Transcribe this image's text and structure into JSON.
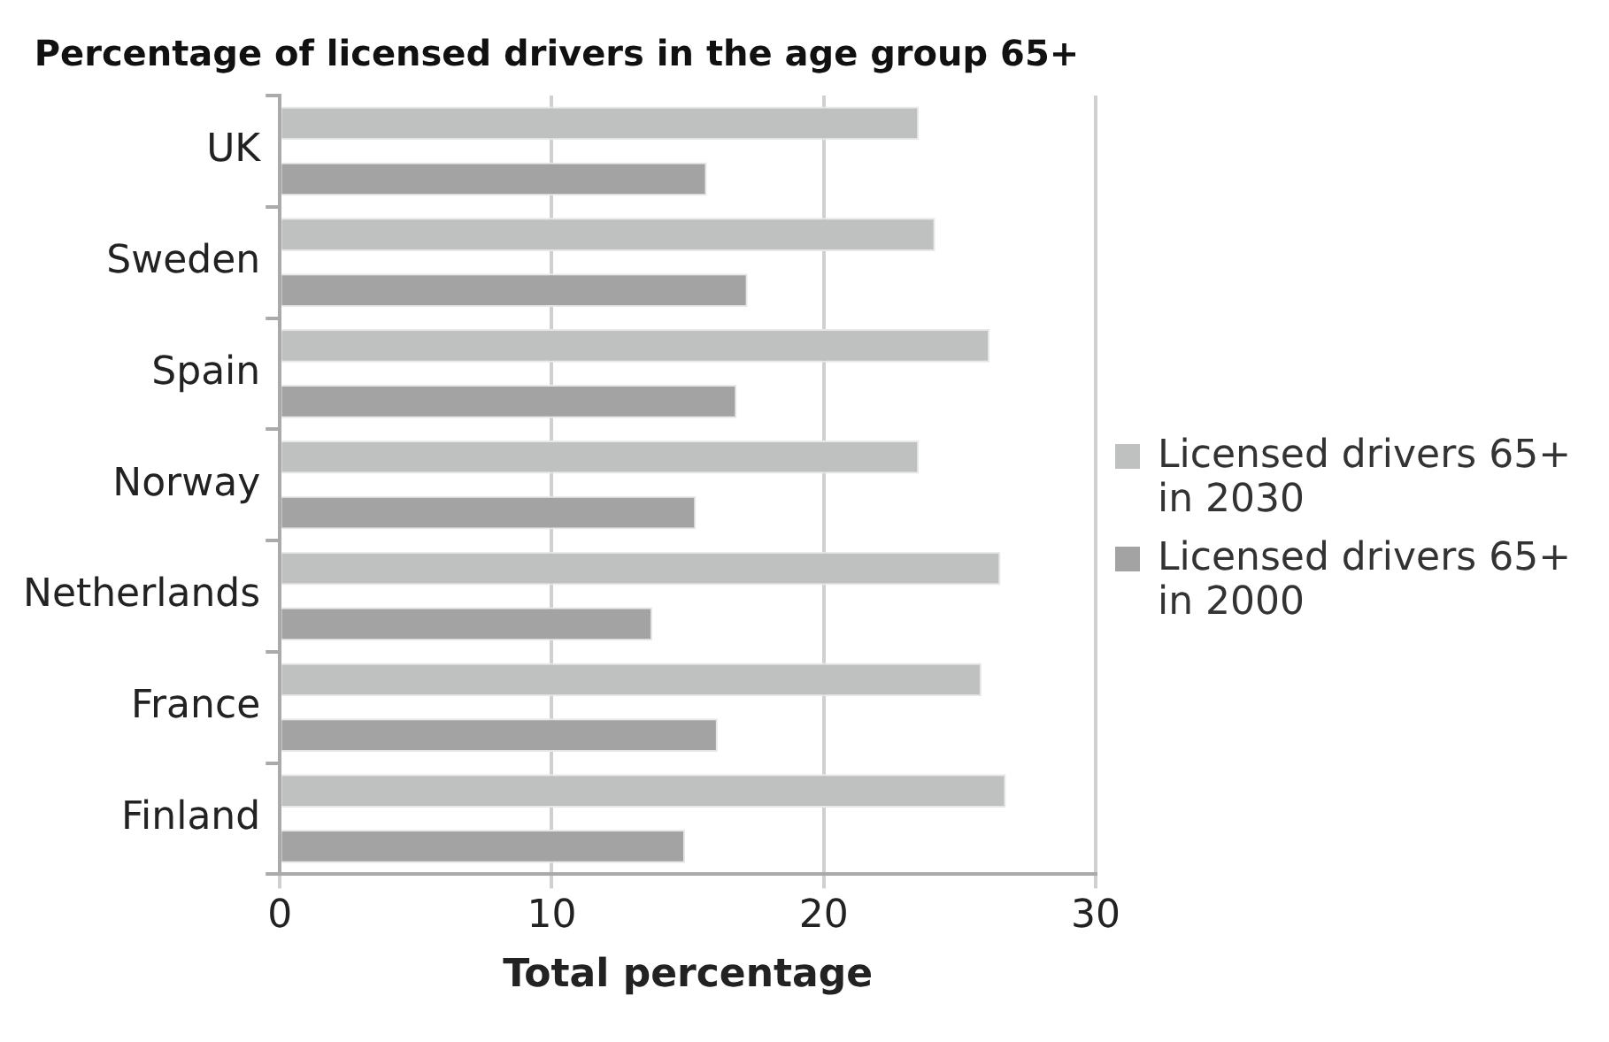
{
  "chart_data": {
    "type": "bar",
    "orientation": "horizontal",
    "title": "Percentage of licensed drivers in the age group 65+",
    "xlabel": "Total percentage",
    "categories": [
      "UK",
      "Sweden",
      "Spain",
      "Norway",
      "Netherlands",
      "France",
      "Finland"
    ],
    "series": [
      {
        "name": "Licensed drivers 65+ in 2030",
        "color": "#bfc1c0",
        "values": [
          23.5,
          24.1,
          26.1,
          23.5,
          26.5,
          25.8,
          26.7
        ]
      },
      {
        "name": "Licensed drivers 65+ in 2000",
        "color": "#a3a3a3",
        "values": [
          15.7,
          17.2,
          16.8,
          15.3,
          13.7,
          16.1,
          14.9
        ]
      }
    ],
    "xlim": [
      0,
      30
    ],
    "xticks": [
      0,
      10,
      20,
      30
    ],
    "grid": "x",
    "legend": "right"
  }
}
